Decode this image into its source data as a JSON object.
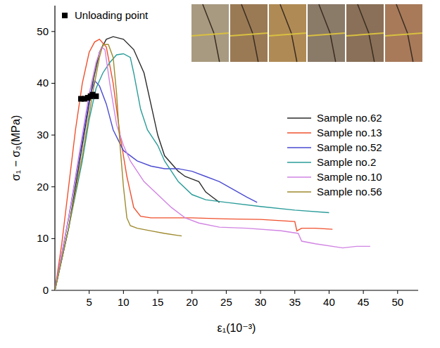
{
  "chart_data": {
    "type": "line",
    "x_label": "ε₁(10⁻³)",
    "y_label": "σ₁ − σ₃(MPa)",
    "xlim": [
      0,
      53
    ],
    "ylim": [
      0,
      55
    ],
    "xticks": [
      5,
      10,
      15,
      20,
      25,
      30,
      35,
      40,
      45,
      50
    ],
    "yticks": [
      0,
      10,
      20,
      30,
      40,
      50
    ],
    "grid": false,
    "legend": "right",
    "series": [
      {
        "name": "Unloading point",
        "type": "scatter",
        "marker": "square",
        "color": "#000000",
        "x": [
          3.8,
          4.3,
          4.8,
          5.2,
          5.5,
          6.0
        ],
        "values": [
          37.0,
          37.0,
          37.2,
          37.5,
          37.8,
          37.5
        ]
      },
      {
        "name": "Sample no.62",
        "type": "line",
        "line_style": "solid",
        "color": "#2b2b2b",
        "x": [
          0,
          2,
          4,
          5.5,
          6.5,
          7.5,
          8.5,
          10,
          11.5,
          13,
          14,
          15,
          16,
          18,
          19,
          20,
          21,
          22,
          23,
          24
        ],
        "values": [
          0,
          12,
          28,
          40,
          46,
          48.5,
          49,
          48.5,
          46.5,
          42,
          36,
          30,
          26,
          23,
          22,
          21.5,
          21,
          19,
          18,
          17
        ]
      },
      {
        "name": "Sample no.13",
        "type": "line",
        "line_style": "solid",
        "color": "#f0502d",
        "x": [
          0,
          1,
          2,
          3,
          4,
          5,
          5.8,
          6.5,
          7.5,
          8.5,
          9.5,
          10.5,
          11.5,
          12.5,
          14,
          20,
          25,
          30,
          35,
          35.3,
          36,
          38,
          40.5
        ],
        "values": [
          0,
          9,
          20,
          31,
          40,
          46,
          48,
          48.5,
          47,
          40,
          30,
          22,
          16,
          14.3,
          14,
          14,
          13.8,
          13.7,
          13.3,
          11.5,
          12,
          12,
          11.8
        ]
      },
      {
        "name": "Sample no.52",
        "type": "line",
        "line_style": "solid",
        "color": "#4b4bd2",
        "x": [
          0,
          2,
          4,
          5,
          5.8,
          6.5,
          7.5,
          8.5,
          10,
          12,
          14,
          16,
          18,
          20,
          22,
          24,
          26,
          28,
          29.5
        ],
        "values": [
          0,
          14,
          29,
          37,
          40.5,
          39.5,
          36,
          31,
          27,
          25,
          24,
          23.5,
          23.5,
          23,
          22,
          21,
          19.5,
          18,
          17
        ]
      },
      {
        "name": "Sample no.2",
        "type": "line",
        "line_style": "solid",
        "color": "#2a9c9a",
        "x": [
          0,
          2,
          4,
          5,
          6,
          7,
          8,
          9,
          10,
          11,
          11.5,
          12.5,
          13.5,
          15,
          16,
          18,
          20,
          22,
          25,
          30,
          35,
          40
        ],
        "values": [
          0,
          12,
          25,
          33,
          39,
          42,
          44,
          45.5,
          45.7,
          45,
          42,
          35,
          31,
          28,
          25,
          21,
          18.5,
          17.5,
          17,
          16.2,
          15.5,
          15
        ]
      },
      {
        "name": "Sample no.10",
        "type": "line",
        "line_style": "solid",
        "color": "#d184e3",
        "x": [
          0,
          2,
          4,
          5,
          6,
          6.8,
          7.3,
          8,
          9,
          10,
          11,
          12,
          13,
          15,
          17,
          19,
          21,
          24,
          28,
          33,
          35.5,
          36,
          38,
          42,
          44,
          46
        ],
        "values": [
          0,
          14,
          30,
          38,
          44,
          47,
          46.5,
          40,
          32,
          28,
          25,
          23,
          21,
          18.5,
          16,
          14,
          13,
          12.2,
          12,
          11.5,
          11,
          9.5,
          9,
          8.2,
          8.5,
          8.5
        ]
      },
      {
        "name": "Sample no.56",
        "type": "line",
        "line_style": "solid",
        "color": "#9e8a2e",
        "x": [
          0,
          2,
          4,
          5.5,
          6.5,
          7,
          7.8,
          8.5,
          9,
          9.5,
          10,
          10.5,
          11,
          12,
          14,
          16,
          18.5
        ],
        "values": [
          0,
          12,
          26,
          38,
          45,
          47.5,
          47.5,
          45,
          38,
          28,
          20,
          14,
          12.5,
          12,
          11.5,
          11,
          10.5
        ]
      }
    ]
  }
}
